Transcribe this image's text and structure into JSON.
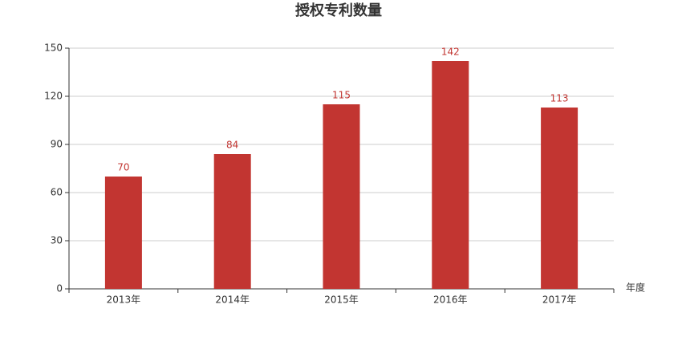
{
  "chart_data": {
    "type": "bar",
    "title": "授权专利数量",
    "x_label": "年度",
    "categories": [
      "2013年",
      "2014年",
      "2015年",
      "2016年",
      "2017年"
    ],
    "values": [
      70,
      84,
      115,
      142,
      113
    ],
    "color": "#c23531",
    "ylim": [
      0,
      150
    ],
    "yticks": [
      0,
      30,
      60,
      90,
      120,
      150
    ],
    "grid": true
  }
}
